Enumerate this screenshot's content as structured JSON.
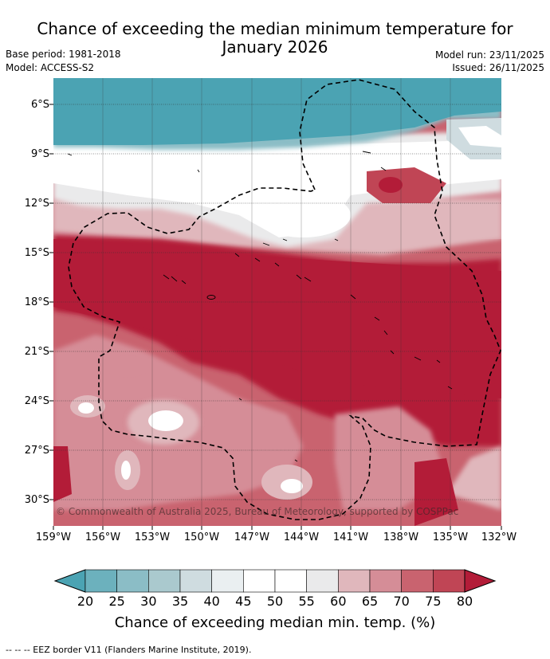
{
  "title": {
    "line1": "Chance of exceeding the median minimum temperature for",
    "line2": "January 2026"
  },
  "meta": {
    "base_period": "Base period: 1981-2018",
    "model": "Model: ACCESS-S2",
    "model_run": "Model run: 23/11/2025",
    "issued": "Issued: 26/11/2025"
  },
  "map": {
    "lat_ticks": [
      "6°S",
      "9°S",
      "12°S",
      "15°S",
      "18°S",
      "21°S",
      "24°S",
      "27°S",
      "30°S"
    ],
    "lon_ticks": [
      "159°W",
      "156°W",
      "153°W",
      "150°W",
      "147°W",
      "144°W",
      "141°W",
      "138°W",
      "135°W",
      "132°W"
    ],
    "copyright": "© Commonwealth of Australia 2025, Bureau of Meteorology, supported by COSPPac",
    "overlay": "EEZ border dashed line",
    "colors": {
      "low": "#4ba3b3",
      "neutral": "#ffffff",
      "high": "#b31c38"
    }
  },
  "colorbar": {
    "ticks": [
      "20",
      "25",
      "30",
      "35",
      "40",
      "45",
      "50",
      "55",
      "60",
      "65",
      "70",
      "75",
      "80"
    ],
    "colors": [
      "#4ba3b3",
      "#6cb1bd",
      "#8bbdc6",
      "#aac9ce",
      "#cfdce0",
      "#eaeff1",
      "#ffffff",
      "#ffffff",
      "#eaeaeb",
      "#e0b7bc",
      "#d58d97",
      "#c9636f",
      "#c04555",
      "#b31c38"
    ],
    "title": "Chance of exceeding median min. temp. (%)"
  },
  "footer": "--  --  -- EEZ border V11 (Flanders Marine Institute, 2019)."
}
